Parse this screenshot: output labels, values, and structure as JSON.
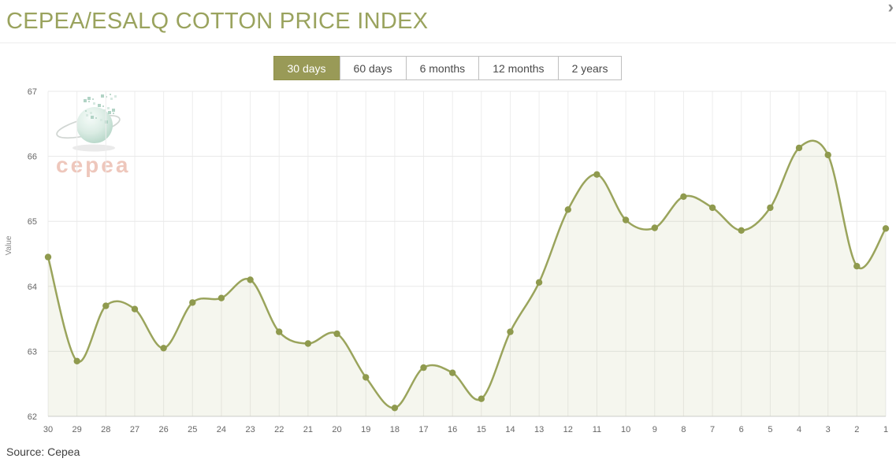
{
  "header": {
    "title": "CEPEA/ESALQ COTTON PRICE INDEX",
    "next_arrow_symbol": "›"
  },
  "tabs": [
    {
      "label": "30 days",
      "selected": true
    },
    {
      "label": "60 days",
      "selected": false
    },
    {
      "label": "6 months",
      "selected": false
    },
    {
      "label": "12 months",
      "selected": false
    },
    {
      "label": "2 years",
      "selected": false
    }
  ],
  "chart_data": {
    "type": "area",
    "title": "CEPEA/ESALQ COTTON PRICE INDEX",
    "x": [
      30,
      29,
      28,
      27,
      26,
      25,
      24,
      23,
      22,
      21,
      20,
      19,
      18,
      17,
      16,
      15,
      14,
      13,
      12,
      11,
      10,
      9,
      8,
      7,
      6,
      5,
      4,
      3,
      2,
      1
    ],
    "values": [
      64.45,
      62.85,
      63.7,
      63.65,
      63.05,
      63.75,
      63.82,
      64.1,
      63.3,
      63.12,
      63.27,
      62.6,
      62.13,
      62.75,
      62.67,
      62.27,
      63.3,
      64.06,
      65.18,
      65.72,
      65.02,
      64.9,
      65.38,
      65.21,
      64.86,
      65.21,
      66.13,
      66.02,
      64.31,
      64.89
    ],
    "xlabel": "",
    "ylabel": "Value",
    "ylim": [
      62,
      67
    ],
    "yticks": [
      62,
      63,
      64,
      65,
      66,
      67
    ],
    "grid": true,
    "legend": false,
    "line_color": "#9aa45c",
    "marker_color": "#8f9a4e",
    "fill_color": "rgba(153,162,90,0.10)",
    "grid_color": "#ededed",
    "axis_line_color": "#cfcfcf",
    "tick_label_color": "#666666"
  },
  "watermark": {
    "brand": "cepea"
  },
  "footer": {
    "source": "Source: Cepea"
  }
}
